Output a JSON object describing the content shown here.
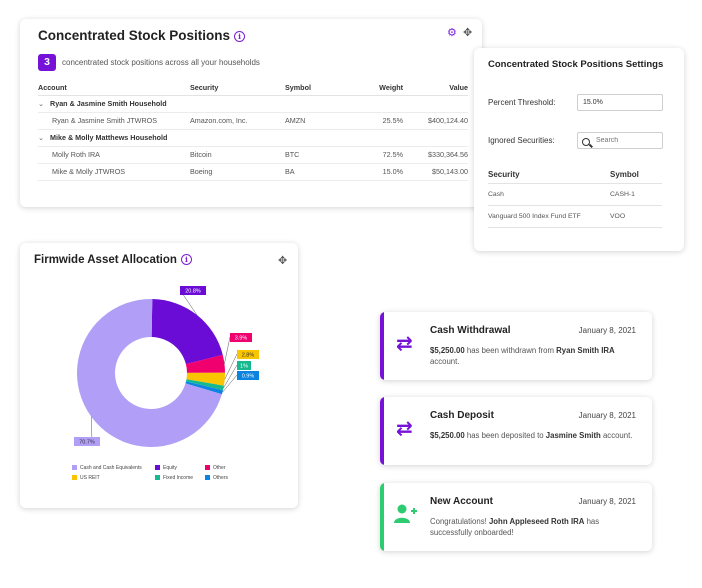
{
  "colors": {
    "accent": "#7612d8",
    "success": "#2ecc71",
    "equity": "#6a0bd6",
    "cash": "#b19ef6",
    "other": "#f0006e",
    "us_reit": "#f9c400",
    "fixed_income": "#16b98f",
    "others": "#0a84e0"
  },
  "positions": {
    "title": "Concentrated Stock Positions",
    "count": "3",
    "count_text": "concentrated stock positions across all your households",
    "columns": [
      "Account",
      "Security",
      "Symbol",
      "Weight",
      "Value"
    ],
    "groups": [
      {
        "name": "Ryan & Jasmine Smith Household",
        "rows": [
          {
            "account": "Ryan & Jasmine Smith JTWROS",
            "security": "Amazon.com, Inc.",
            "symbol": "AMZN",
            "weight": "25.5%",
            "value": "$400,124.40"
          }
        ]
      },
      {
        "name": "Mike & Molly Matthews Household",
        "rows": [
          {
            "account": "Molly Roth IRA",
            "security": "Bitcoin",
            "symbol": "BTC",
            "weight": "72.5%",
            "value": "$330,364.56"
          },
          {
            "account": "Mike & Molly JTWROS",
            "security": "Boeing",
            "symbol": "BA",
            "weight": "15.0%",
            "value": "$50,143.00"
          }
        ]
      }
    ]
  },
  "settings": {
    "title": "Concentrated Stock Positions Settings",
    "threshold_label": "Percent Threshold:",
    "threshold_value": "15.0%",
    "ignored_label": "Ignored Securities:",
    "search_placeholder": "Search",
    "col_security": "Security",
    "col_symbol": "Symbol",
    "rows": [
      {
        "security": "Cash",
        "symbol": "CASH-1"
      },
      {
        "security": "Vanguard 500 Index Fund ETF",
        "symbol": "VOO"
      }
    ]
  },
  "allocation": {
    "title": "Firmwide Asset Allocation"
  },
  "chart_data": {
    "type": "pie",
    "title": "Firmwide Asset Allocation",
    "donut": true,
    "series": [
      {
        "name": "Cash and Cash Equivalents",
        "value": 70.7,
        "label": "70.7%",
        "color": "#b19ef6"
      },
      {
        "name": "Equity",
        "value": 20.8,
        "label": "20.8%",
        "color": "#6a0bd6"
      },
      {
        "name": "Other",
        "value": 3.9,
        "label": "3.9%",
        "color": "#f0006e"
      },
      {
        "name": "US REIT",
        "value": 2.8,
        "label": "2.8%",
        "color": "#f9c400"
      },
      {
        "name": "Fixed Income",
        "value": 1.0,
        "label": "1%",
        "color": "#16b98f"
      },
      {
        "name": "Others",
        "value": 0.9,
        "label": "0.9%",
        "color": "#0a84e0"
      }
    ],
    "legend": [
      "Cash and Cash Equivalents",
      "Equity",
      "Other",
      "US REIT",
      "Fixed Income",
      "Others"
    ]
  },
  "notifications": [
    {
      "title": "Cash Withdrawal",
      "date": "January 8, 2021",
      "amount": "$5,250.00",
      "mid": " has been withdrawn from ",
      "who": "Ryan Smith IRA",
      "end": " account.",
      "kind": "transfer"
    },
    {
      "title": "Cash Deposit",
      "date": "January 8, 2021",
      "amount": "$5,250.00",
      "mid": " has been deposited to ",
      "who": "Jasmine Smith",
      "end": " account.",
      "kind": "transfer"
    },
    {
      "title": "New Account",
      "date": "January 8, 2021",
      "amount": "Congratulations! ",
      "mid": "",
      "who": "John Appleseed Roth IRA",
      "end": " has successfully onboarded!",
      "kind": "user"
    }
  ]
}
